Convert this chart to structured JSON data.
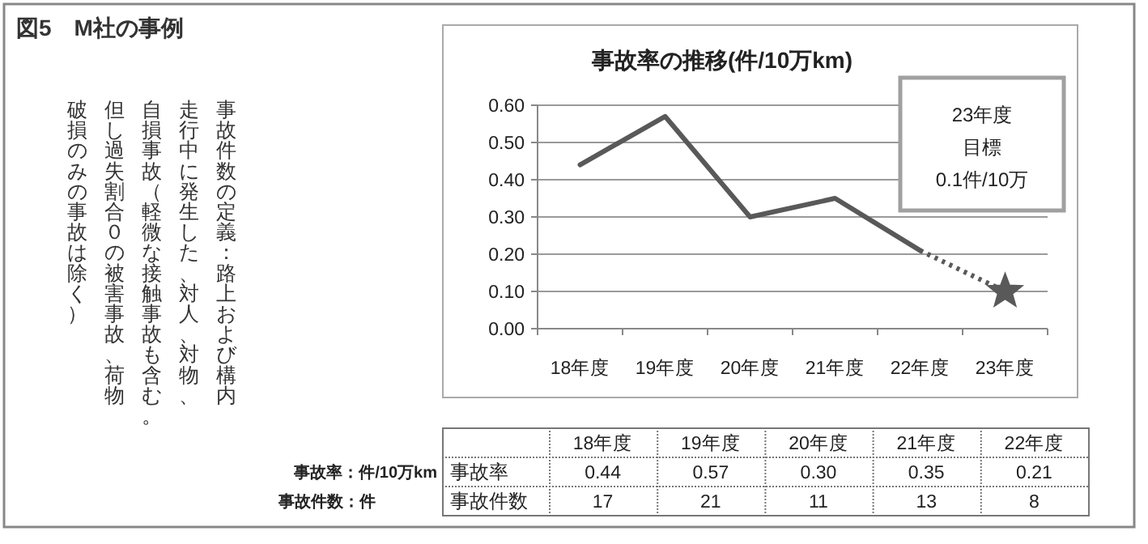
{
  "chart_data": {
    "type": "line",
    "title": "事故率の推移(件/10万km)",
    "categories": [
      "18年度",
      "19年度",
      "20年度",
      "21年度",
      "22年度",
      "23年度"
    ],
    "ylim": [
      0,
      0.6
    ],
    "yticks": [
      {
        "value": 0,
        "label": "0.00"
      },
      {
        "value": 0.1,
        "label": "0.10"
      },
      {
        "value": 0.2,
        "label": "0.20"
      },
      {
        "value": 0.3,
        "label": "0.30"
      },
      {
        "value": 0.4,
        "label": "0.40"
      },
      {
        "value": 0.5,
        "label": "0.50"
      },
      {
        "value": 0.6,
        "label": "0.60"
      }
    ],
    "grid": "y",
    "series": [
      {
        "color": "#595959",
        "line_style": "solid",
        "marker": "none",
        "values": [
          0.44,
          0.57,
          0.3,
          0.35,
          0.21,
          null
        ]
      },
      {
        "color": "#595959",
        "line_style": "dotted",
        "marker": "none",
        "values": [
          null,
          null,
          null,
          null,
          0.21,
          0.1
        ]
      },
      {
        "type": "scatter",
        "color": "#595959",
        "marker": "star",
        "values": [
          null,
          null,
          null,
          null,
          null,
          0.1
        ]
      }
    ],
    "annotations": [
      "図5　M社の事例",
      "事故件数の定義：路上および構内",
      "走行中に発生した、対人、対物、",
      "自損事故（軽微な接触事故も含む。",
      "但し過失割合０の被害事故、荷物",
      "破損のみの事故は除く）",
      "23年度",
      "目標",
      "0.1件/10万",
      "事故率：件/10万km",
      "事故件数：件",
      "事故率",
      "事故件数",
      "0.44",
      "0.57",
      "0.30",
      "0.35",
      "0.21",
      "17",
      "21",
      "11",
      "13",
      "8"
    ]
  }
}
